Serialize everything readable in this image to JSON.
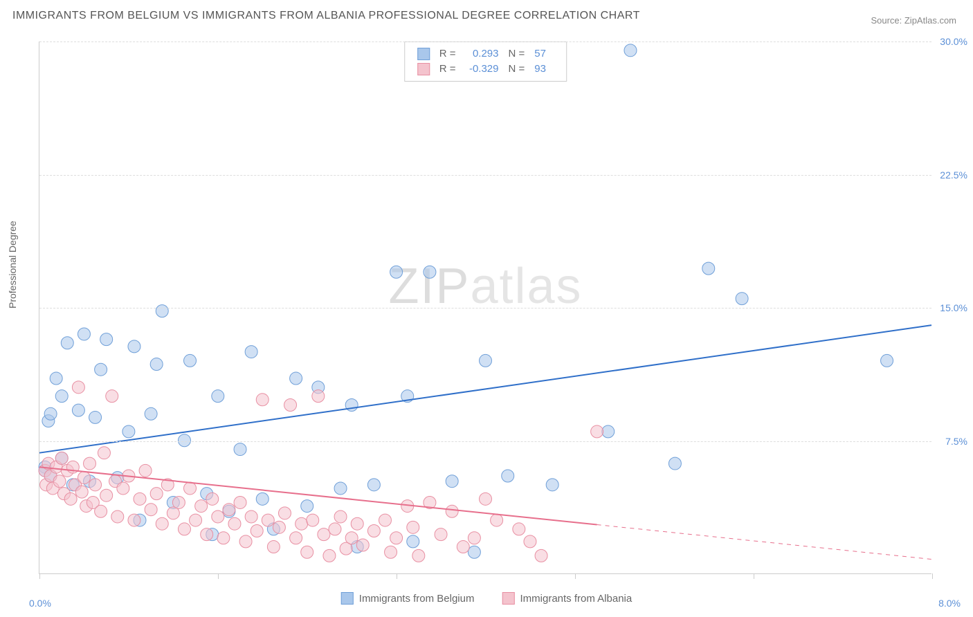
{
  "title": "IMMIGRANTS FROM BELGIUM VS IMMIGRANTS FROM ALBANIA PROFESSIONAL DEGREE CORRELATION CHART",
  "source": "Source: ZipAtlas.com",
  "watermark": "ZIPatlas",
  "ylabel": "Professional Degree",
  "chart": {
    "type": "scatter-with-regression",
    "background_color": "#ffffff",
    "grid_color": "#dddddd",
    "axis_color": "#cccccc",
    "tick_label_color": "#5b8fd6",
    "label_color": "#666666",
    "title_fontsize": 16,
    "label_fontsize": 14,
    "tick_fontsize": 14,
    "xlim": [
      0.0,
      8.0
    ],
    "ylim": [
      0.0,
      30.0
    ],
    "xticks": [
      0.0,
      1.6,
      3.2,
      4.8,
      6.4,
      8.0
    ],
    "yticks": [
      7.5,
      15.0,
      22.5,
      30.0
    ],
    "ytick_labels": [
      "7.5%",
      "15.0%",
      "22.5%",
      "30.0%"
    ],
    "xmin_label": "0.0%",
    "xmax_label": "8.0%",
    "marker_radius": 9,
    "marker_opacity": 0.55,
    "line_width": 2,
    "series": [
      {
        "name": "Immigrants from Belgium",
        "fill_color": "#a9c7eb",
        "stroke_color": "#6f9fd8",
        "line_color": "#2f6fc9",
        "R": "0.293",
        "N": "57",
        "regression": {
          "x1": 0.0,
          "y1": 6.8,
          "x2": 8.0,
          "y2": 14.0,
          "dashed_from_x": null
        },
        "points": [
          [
            0.05,
            6.0
          ],
          [
            0.05,
            5.8
          ],
          [
            0.08,
            8.6
          ],
          [
            0.1,
            5.5
          ],
          [
            0.1,
            9.0
          ],
          [
            0.15,
            11.0
          ],
          [
            0.2,
            6.5
          ],
          [
            0.2,
            10.0
          ],
          [
            0.25,
            13.0
          ],
          [
            0.3,
            5.0
          ],
          [
            0.35,
            9.2
          ],
          [
            0.4,
            13.5
          ],
          [
            0.45,
            5.2
          ],
          [
            0.5,
            8.8
          ],
          [
            0.55,
            11.5
          ],
          [
            0.6,
            13.2
          ],
          [
            0.7,
            5.4
          ],
          [
            0.8,
            8.0
          ],
          [
            0.85,
            12.8
          ],
          [
            0.9,
            3.0
          ],
          [
            1.0,
            9.0
          ],
          [
            1.05,
            11.8
          ],
          [
            1.1,
            14.8
          ],
          [
            1.2,
            4.0
          ],
          [
            1.3,
            7.5
          ],
          [
            1.35,
            12.0
          ],
          [
            1.5,
            4.5
          ],
          [
            1.55,
            2.2
          ],
          [
            1.6,
            10.0
          ],
          [
            1.7,
            3.5
          ],
          [
            1.8,
            7.0
          ],
          [
            1.9,
            12.5
          ],
          [
            2.0,
            4.2
          ],
          [
            2.1,
            2.5
          ],
          [
            2.3,
            11.0
          ],
          [
            2.4,
            3.8
          ],
          [
            2.5,
            10.5
          ],
          [
            2.7,
            4.8
          ],
          [
            2.8,
            9.5
          ],
          [
            2.85,
            1.5
          ],
          [
            3.0,
            5.0
          ],
          [
            3.2,
            17.0
          ],
          [
            3.3,
            10.0
          ],
          [
            3.35,
            1.8
          ],
          [
            3.5,
            17.0
          ],
          [
            3.7,
            5.2
          ],
          [
            3.9,
            1.2
          ],
          [
            4.0,
            12.0
          ],
          [
            4.2,
            5.5
          ],
          [
            4.6,
            5.0
          ],
          [
            5.1,
            8.0
          ],
          [
            5.3,
            29.5
          ],
          [
            5.7,
            6.2
          ],
          [
            6.0,
            17.2
          ],
          [
            6.3,
            15.5
          ],
          [
            7.6,
            12.0
          ]
        ]
      },
      {
        "name": "Immigrants from Albania",
        "fill_color": "#f4c3cd",
        "stroke_color": "#e88fa2",
        "line_color": "#e76f8c",
        "R": "-0.329",
        "N": "93",
        "regression": {
          "x1": 0.0,
          "y1": 6.0,
          "x2": 8.0,
          "y2": 0.8,
          "dashed_from_x": 5.0
        },
        "points": [
          [
            0.05,
            5.8
          ],
          [
            0.06,
            5.0
          ],
          [
            0.08,
            6.2
          ],
          [
            0.1,
            5.5
          ],
          [
            0.12,
            4.8
          ],
          [
            0.15,
            6.0
          ],
          [
            0.18,
            5.2
          ],
          [
            0.2,
            6.5
          ],
          [
            0.22,
            4.5
          ],
          [
            0.25,
            5.8
          ],
          [
            0.28,
            4.2
          ],
          [
            0.3,
            6.0
          ],
          [
            0.32,
            5.0
          ],
          [
            0.35,
            10.5
          ],
          [
            0.38,
            4.6
          ],
          [
            0.4,
            5.4
          ],
          [
            0.42,
            3.8
          ],
          [
            0.45,
            6.2
          ],
          [
            0.48,
            4.0
          ],
          [
            0.5,
            5.0
          ],
          [
            0.55,
            3.5
          ],
          [
            0.58,
            6.8
          ],
          [
            0.6,
            4.4
          ],
          [
            0.65,
            10.0
          ],
          [
            0.68,
            5.2
          ],
          [
            0.7,
            3.2
          ],
          [
            0.75,
            4.8
          ],
          [
            0.8,
            5.5
          ],
          [
            0.85,
            3.0
          ],
          [
            0.9,
            4.2
          ],
          [
            0.95,
            5.8
          ],
          [
            1.0,
            3.6
          ],
          [
            1.05,
            4.5
          ],
          [
            1.1,
            2.8
          ],
          [
            1.15,
            5.0
          ],
          [
            1.2,
            3.4
          ],
          [
            1.25,
            4.0
          ],
          [
            1.3,
            2.5
          ],
          [
            1.35,
            4.8
          ],
          [
            1.4,
            3.0
          ],
          [
            1.45,
            3.8
          ],
          [
            1.5,
            2.2
          ],
          [
            1.55,
            4.2
          ],
          [
            1.6,
            3.2
          ],
          [
            1.65,
            2.0
          ],
          [
            1.7,
            3.6
          ],
          [
            1.75,
            2.8
          ],
          [
            1.8,
            4.0
          ],
          [
            1.85,
            1.8
          ],
          [
            1.9,
            3.2
          ],
          [
            1.95,
            2.4
          ],
          [
            2.0,
            9.8
          ],
          [
            2.05,
            3.0
          ],
          [
            2.1,
            1.5
          ],
          [
            2.15,
            2.6
          ],
          [
            2.2,
            3.4
          ],
          [
            2.25,
            9.5
          ],
          [
            2.3,
            2.0
          ],
          [
            2.35,
            2.8
          ],
          [
            2.4,
            1.2
          ],
          [
            2.45,
            3.0
          ],
          [
            2.5,
            10.0
          ],
          [
            2.55,
            2.2
          ],
          [
            2.6,
            1.0
          ],
          [
            2.65,
            2.5
          ],
          [
            2.7,
            3.2
          ],
          [
            2.75,
            1.4
          ],
          [
            2.8,
            2.0
          ],
          [
            2.85,
            2.8
          ],
          [
            2.9,
            1.6
          ],
          [
            3.0,
            2.4
          ],
          [
            3.1,
            3.0
          ],
          [
            3.15,
            1.2
          ],
          [
            3.2,
            2.0
          ],
          [
            3.3,
            3.8
          ],
          [
            3.35,
            2.6
          ],
          [
            3.4,
            1.0
          ],
          [
            3.5,
            4.0
          ],
          [
            3.6,
            2.2
          ],
          [
            3.7,
            3.5
          ],
          [
            3.8,
            1.5
          ],
          [
            3.9,
            2.0
          ],
          [
            4.0,
            4.2
          ],
          [
            4.1,
            3.0
          ],
          [
            4.3,
            2.5
          ],
          [
            4.4,
            1.8
          ],
          [
            4.5,
            1.0
          ],
          [
            5.0,
            8.0
          ]
        ]
      }
    ],
    "legend_bottom": [
      {
        "label": "Immigrants from Belgium",
        "fill": "#a9c7eb",
        "stroke": "#6f9fd8"
      },
      {
        "label": "Immigrants from Albania",
        "fill": "#f4c3cd",
        "stroke": "#e88fa2"
      }
    ]
  }
}
